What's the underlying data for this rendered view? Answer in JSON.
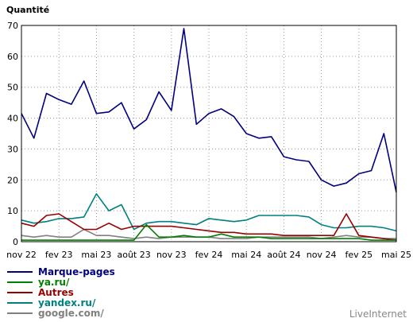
{
  "chart_data": {
    "type": "line",
    "ylabel": "Quantité",
    "ylim": [
      0,
      70
    ],
    "yticks": [
      0,
      10,
      20,
      30,
      40,
      50,
      60,
      70
    ],
    "xtick_labels": [
      "nov 22",
      "fev 23",
      "mai 23",
      "août 23",
      "nov 23",
      "fev 24",
      "mai 24",
      "août 24",
      "nov 24",
      "fev 25",
      "mai 25"
    ],
    "grid": true,
    "legend_position": "bottom-left",
    "credit": "LiveInternet",
    "series": [
      {
        "name": "Marque-pages",
        "color": "#000080",
        "values": [
          41.5,
          33.5,
          48,
          46,
          44.5,
          52,
          41.5,
          42,
          45,
          36.5,
          39.5,
          48.5,
          42.5,
          69,
          38,
          41.5,
          43,
          40.5,
          35,
          33.5,
          34,
          27.5,
          26.5,
          26,
          20,
          18,
          19,
          22,
          23,
          35,
          16
        ]
      },
      {
        "name": "ya.ru/",
        "color": "#008000",
        "values": [
          0.5,
          0.5,
          0.5,
          0.5,
          0.5,
          0.5,
          0.5,
          0.5,
          0.5,
          0.5,
          5.5,
          1.5,
          1.5,
          2,
          1.5,
          1.5,
          2.5,
          1.5,
          1.5,
          1.5,
          1,
          1,
          1,
          1,
          1,
          1,
          1,
          1,
          0.5,
          0.5,
          0.5
        ]
      },
      {
        "name": "Autres",
        "color": "#990000",
        "values": [
          6,
          5,
          8.5,
          9,
          6.5,
          4,
          4,
          6,
          4,
          5,
          5,
          5,
          5,
          4.5,
          4,
          3.5,
          3,
          3,
          2.5,
          2.5,
          2.5,
          2,
          2,
          2,
          2,
          2,
          9,
          2,
          1.5,
          1,
          0.5
        ]
      },
      {
        "name": "yandex.ru/",
        "color": "#008080",
        "values": [
          7,
          6,
          6.5,
          7.5,
          7.5,
          8,
          15.5,
          10,
          12,
          4,
          6,
          6.5,
          6.5,
          6,
          5.5,
          7.5,
          7,
          6.5,
          7,
          8.5,
          8.5,
          8.5,
          8.5,
          8,
          5.5,
          4.5,
          4.5,
          5,
          5,
          4.5,
          3.5
        ]
      },
      {
        "name": "google.com/",
        "color": "#808080",
        "values": [
          2,
          1.5,
          2,
          1.5,
          1.5,
          4,
          2,
          2,
          1.5,
          1,
          1.5,
          1,
          1.5,
          1.5,
          1.5,
          1.5,
          1,
          1,
          1,
          1.5,
          1.5,
          1.5,
          1.5,
          1.5,
          1,
          1.5,
          2,
          1.5,
          1.5,
          1,
          1
        ]
      }
    ]
  }
}
